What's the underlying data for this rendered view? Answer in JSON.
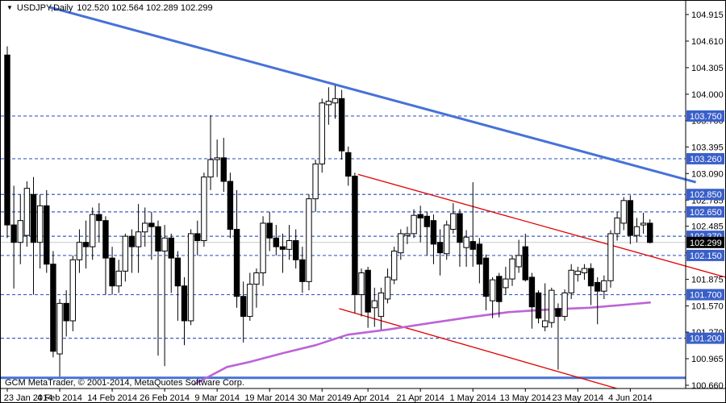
{
  "titlebar": {
    "symbol_period": "USDJPY,Daily",
    "ohlc_values": "102.520 102.564 102.289 102.299"
  },
  "footer": {
    "copyright": "GCM MetaTrader, © 2001-2014, MetaQuotes Software Corp."
  },
  "colors": {
    "background": "#FFFFFF",
    "axis_text": "#000000",
    "grid_blue": "#3A5FC8",
    "badge_blue": "#3A5FC8",
    "badge_current_bg": "#000000",
    "badge_text": "#FFFFFF",
    "trendline_blue": "#4672D8",
    "channel_red": "#E00000",
    "moving_average": "#BC64D6",
    "current_price_line": "#C8C8C8",
    "candle_up_fill": "#FFFFFF",
    "candle_down_fill": "#000000",
    "candle_outline": "#000000"
  },
  "chart_data": {
    "type": "candlestick",
    "symbol": "USDJPY",
    "timeframe": "Daily",
    "current_bar": {
      "open": "102.520",
      "high": "102.564",
      "low": "102.289",
      "close": "102.299"
    },
    "y_axis_ticks": [
      "104.915",
      "104.610",
      "104.305",
      "104.000",
      "103.700",
      "103.395",
      "103.090",
      "102.785",
      "102.485",
      "102.180",
      "101.875",
      "101.570",
      "101.270",
      "100.965",
      "100.660"
    ],
    "x_axis_labels": [
      {
        "text": "23 Jan 2014",
        "bar_index": 0
      },
      {
        "text": "4 Feb 2014",
        "bar_index": 8
      },
      {
        "text": "14 Feb 2014",
        "bar_index": 16
      },
      {
        "text": "26 Feb 2014",
        "bar_index": 24
      },
      {
        "text": "9 Mar 2014",
        "bar_index": 32
      },
      {
        "text": "19 Mar 2014",
        "bar_index": 40
      },
      {
        "text": "30 Mar 2014",
        "bar_index": 48
      },
      {
        "text": "9 Apr 2014",
        "bar_index": 55
      },
      {
        "text": "21 Apr 2014",
        "bar_index": 63
      },
      {
        "text": "1 May 2014",
        "bar_index": 71
      },
      {
        "text": "13 May 2014",
        "bar_index": 79
      },
      {
        "text": "23 May 2014",
        "bar_index": 87
      },
      {
        "text": "4 Jun 2014",
        "bar_index": 95
      }
    ],
    "horizontal_levels": [
      "103.750",
      "103.260",
      "102.850",
      "102.650",
      "102.370",
      "102.150",
      "101.700",
      "101.200"
    ],
    "current_price": "102.299",
    "support_line": {
      "price": 100.745,
      "from_bar": -1,
      "to_bar": 103.5
    },
    "trendlines": [
      {
        "name": "descending-resistance",
        "color_key": "trendline_blue",
        "width": 3,
        "from": {
          "bar": 6.4,
          "price": 105.0
        },
        "to": {
          "bar": 105.0,
          "price": 102.99
        }
      },
      {
        "name": "channel-upper",
        "color_key": "channel_red",
        "width": 1.3,
        "from": {
          "bar": 53.5,
          "price": 103.08
        },
        "to": {
          "bar": 110.0,
          "price": 101.89
        }
      },
      {
        "name": "channel-lower",
        "color_key": "channel_red",
        "width": 1.3,
        "from": {
          "bar": 50.6,
          "price": 101.54
        },
        "to": {
          "bar": 94.0,
          "price": 100.6
        }
      }
    ],
    "moving_average_points": [
      [
        28.5,
        100.67
      ],
      [
        31.0,
        100.77
      ],
      [
        33.5,
        100.87
      ],
      [
        37.1,
        100.93
      ],
      [
        42.1,
        101.03
      ],
      [
        47.0,
        101.12
      ],
      [
        51.9,
        101.24
      ],
      [
        58.1,
        101.3
      ],
      [
        64.2,
        101.37
      ],
      [
        70.4,
        101.44
      ],
      [
        76.5,
        101.5
      ],
      [
        82.7,
        101.53
      ],
      [
        88.8,
        101.55
      ],
      [
        95.0,
        101.59
      ],
      [
        98.0,
        101.61
      ]
    ],
    "candles_ohlc": [
      [
        104.45,
        104.55,
        102.35,
        102.5
      ],
      [
        102.5,
        102.95,
        101.77,
        102.3
      ],
      [
        102.3,
        102.85,
        102.05,
        102.55
      ],
      [
        102.38,
        103.0,
        102.25,
        102.92
      ],
      [
        102.85,
        103.05,
        101.7,
        102.3
      ],
      [
        102.3,
        102.85,
        102.0,
        102.72
      ],
      [
        102.72,
        102.9,
        101.95,
        102.05
      ],
      [
        102.05,
        102.2,
        100.98,
        101.05
      ],
      [
        101.02,
        101.65,
        100.76,
        101.6
      ],
      [
        101.6,
        101.75,
        101.22,
        101.4
      ],
      [
        101.4,
        102.15,
        101.28,
        102.1
      ],
      [
        102.1,
        102.45,
        101.95,
        102.3
      ],
      [
        102.3,
        102.55,
        102.0,
        102.25
      ],
      [
        102.25,
        102.7,
        102.1,
        102.62
      ],
      [
        102.62,
        102.75,
        102.3,
        102.55
      ],
      [
        102.55,
        102.6,
        101.7,
        102.12
      ],
      [
        102.12,
        102.25,
        101.7,
        101.8
      ],
      [
        101.8,
        102.1,
        101.72,
        101.97
      ],
      [
        101.97,
        102.4,
        101.85,
        102.37
      ],
      [
        102.37,
        102.45,
        101.95,
        102.25
      ],
      [
        102.25,
        102.74,
        101.95,
        102.42
      ],
      [
        102.42,
        102.7,
        102.25,
        102.52
      ],
      [
        102.52,
        102.65,
        102.1,
        102.48
      ],
      [
        102.48,
        102.55,
        101.0,
        102.2
      ],
      [
        102.2,
        102.5,
        100.88,
        102.35
      ],
      [
        102.35,
        102.4,
        101.72,
        102.12
      ],
      [
        102.12,
        102.2,
        101.4,
        101.8
      ],
      [
        101.8,
        101.9,
        101.12,
        101.4
      ],
      [
        101.4,
        102.45,
        101.35,
        102.4
      ],
      [
        102.4,
        102.55,
        102.15,
        102.32
      ],
      [
        102.32,
        103.1,
        102.25,
        103.05
      ],
      [
        103.05,
        103.76,
        102.9,
        103.25
      ],
      [
        103.25,
        103.48,
        103.05,
        103.27
      ],
      [
        103.27,
        103.5,
        102.88,
        103.0
      ],
      [
        103.0,
        103.1,
        102.35,
        102.45
      ],
      [
        102.45,
        102.9,
        101.55,
        101.68
      ],
      [
        101.68,
        101.85,
        101.15,
        101.45
      ],
      [
        101.45,
        101.95,
        101.4,
        101.82
      ],
      [
        101.82,
        102.0,
        101.55,
        101.95
      ],
      [
        101.95,
        102.6,
        101.8,
        102.52
      ],
      [
        102.52,
        102.65,
        102.2,
        102.35
      ],
      [
        102.35,
        102.5,
        102.15,
        102.25
      ],
      [
        102.25,
        102.4,
        101.95,
        102.22
      ],
      [
        102.22,
        102.5,
        102.1,
        102.32
      ],
      [
        102.32,
        102.45,
        102.0,
        102.1
      ],
      [
        102.1,
        102.25,
        101.72,
        101.85
      ],
      [
        101.85,
        102.85,
        101.75,
        102.8
      ],
      [
        102.8,
        103.25,
        102.65,
        103.2
      ],
      [
        103.2,
        103.95,
        103.1,
        103.9
      ],
      [
        103.88,
        104.08,
        103.65,
        103.92
      ],
      [
        103.9,
        104.1,
        103.72,
        103.95
      ],
      [
        103.95,
        104.05,
        103.25,
        103.35
      ],
      [
        103.33,
        103.4,
        102.95,
        103.06
      ],
      [
        103.06,
        103.1,
        101.49,
        101.7
      ],
      [
        101.7,
        102.0,
        101.45,
        101.95
      ],
      [
        101.98,
        102.02,
        101.32,
        101.5
      ],
      [
        101.55,
        101.78,
        101.33,
        101.63
      ],
      [
        101.45,
        101.78,
        101.3,
        101.72
      ],
      [
        101.65,
        102.0,
        101.6,
        101.9
      ],
      [
        101.87,
        102.25,
        101.82,
        102.2
      ],
      [
        102.18,
        102.45,
        102.1,
        102.4
      ],
      [
        102.38,
        102.48,
        102.28,
        102.4
      ],
      [
        102.4,
        102.68,
        102.35,
        102.61
      ],
      [
        102.62,
        102.72,
        102.3,
        102.58
      ],
      [
        102.6,
        102.65,
        102.15,
        102.48
      ],
      [
        102.55,
        102.62,
        102.05,
        102.28
      ],
      [
        102.3,
        102.45,
        101.92,
        102.18
      ],
      [
        102.17,
        102.55,
        102.1,
        102.5
      ],
      [
        102.45,
        102.75,
        102.4,
        102.63
      ],
      [
        102.63,
        102.68,
        102.02,
        102.3
      ],
      [
        102.24,
        102.44,
        102.02,
        102.36
      ],
      [
        102.31,
        102.99,
        102.02,
        102.22
      ],
      [
        102.28,
        102.35,
        101.83,
        102.05
      ],
      [
        102.12,
        102.16,
        101.52,
        101.68
      ],
      [
        101.63,
        101.9,
        101.43,
        101.87
      ],
      [
        101.91,
        101.95,
        101.44,
        101.62
      ],
      [
        101.78,
        102.02,
        101.7,
        101.88
      ],
      [
        101.88,
        102.15,
        101.8,
        102.11
      ],
      [
        102.02,
        102.33,
        101.95,
        102.15
      ],
      [
        102.25,
        102.4,
        101.85,
        101.87
      ],
      [
        101.9,
        101.95,
        101.31,
        101.56
      ],
      [
        101.72,
        101.75,
        101.37,
        101.43
      ],
      [
        101.33,
        101.83,
        101.28,
        101.4
      ],
      [
        101.38,
        101.78,
        101.32,
        101.75
      ],
      [
        101.54,
        101.6,
        100.84,
        101.45
      ],
      [
        101.45,
        101.76,
        101.4,
        101.72
      ],
      [
        101.72,
        102.05,
        101.65,
        101.98
      ],
      [
        101.93,
        102.02,
        101.85,
        101.97
      ],
      [
        101.95,
        102.05,
        101.87,
        102.0
      ],
      [
        102.0,
        102.06,
        101.58,
        101.8
      ],
      [
        101.84,
        101.9,
        101.36,
        101.74
      ],
      [
        101.74,
        101.92,
        101.65,
        101.86
      ],
      [
        101.86,
        102.44,
        101.78,
        102.4
      ],
      [
        102.4,
        102.65,
        102.32,
        102.58
      ],
      [
        102.52,
        102.82,
        102.44,
        102.78
      ],
      [
        102.78,
        102.84,
        102.28,
        102.38
      ],
      [
        102.38,
        102.58,
        102.3,
        102.48
      ],
      [
        102.5,
        102.64,
        102.4,
        102.52
      ],
      [
        102.52,
        102.564,
        102.289,
        102.299
      ]
    ]
  }
}
